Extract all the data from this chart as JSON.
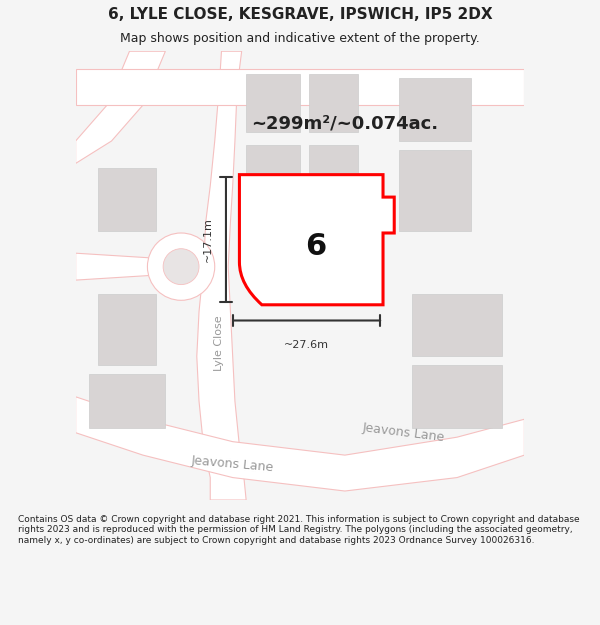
{
  "title": "6, LYLE CLOSE, KESGRAVE, IPSWICH, IP5 2DX",
  "subtitle": "Map shows position and indicative extent of the property.",
  "area_text": "~299m²/~0.074ac.",
  "dim_width": "~27.6m",
  "dim_height": "~17.1m",
  "label": "6",
  "footer": "Contains OS data © Crown copyright and database right 2021. This information is subject to Crown copyright and database rights 2023 and is reproduced with the permission of HM Land Registry. The polygons (including the associated geometry, namely x, y co-ordinates) are subject to Crown copyright and database rights 2023 Ordnance Survey 100026316.",
  "bg_color": "#f5f5f5",
  "map_bg": "#f0eeee",
  "road_color": "#f5c0c0",
  "road_fill": "#ffffff",
  "building_fill": "#d8d4d4",
  "building_edge": "#cccccc",
  "plot_fill": "#ffffff",
  "plot_edge": "#ff0000",
  "dim_color": "#333333",
  "street_label_color": "#888888",
  "title_color": "#222222",
  "footer_color": "#222222"
}
